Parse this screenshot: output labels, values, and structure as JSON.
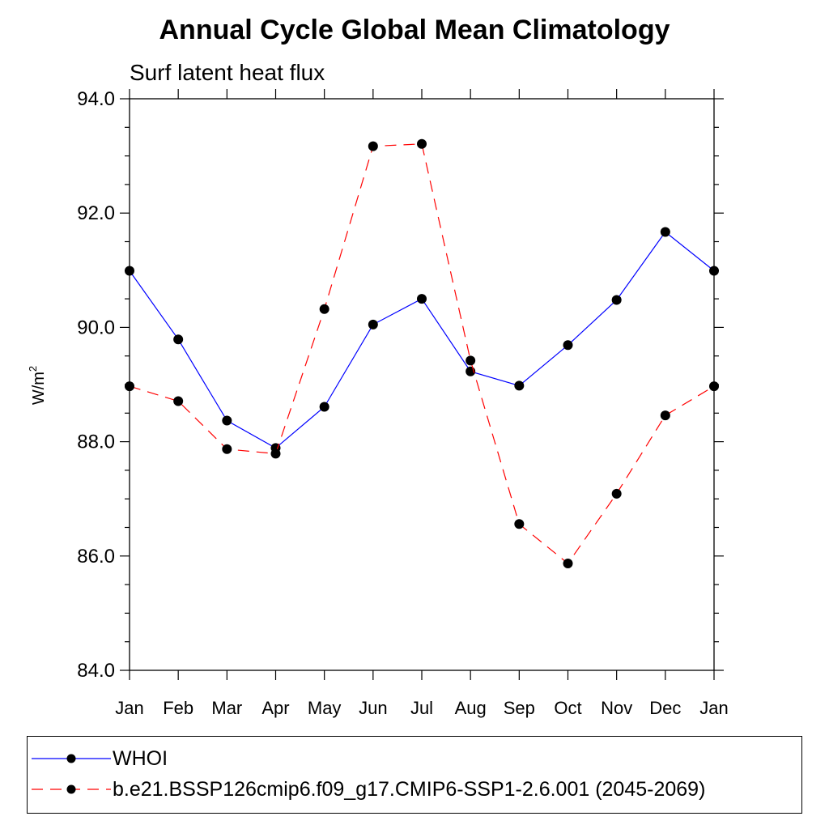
{
  "chart_data": {
    "type": "line",
    "title": "Annual Cycle Global Mean Climatology",
    "subtitle": "Surf latent heat flux",
    "ylabel": "W/m",
    "ylabel_sup": "2",
    "ylim": [
      84.0,
      94.0
    ],
    "y_ticks": [
      "84.0",
      "86.0",
      "88.0",
      "90.0",
      "92.0",
      "94.0"
    ],
    "categories": [
      "Jan",
      "Feb",
      "Mar",
      "Apr",
      "May",
      "Jun",
      "Jul",
      "Aug",
      "Sep",
      "Oct",
      "Nov",
      "Dec",
      "Jan"
    ],
    "series": [
      {
        "name": "WHOI",
        "color": "#0000ff",
        "dash": "solid",
        "values": [
          90.99,
          89.79,
          88.37,
          87.89,
          88.61,
          90.05,
          90.5,
          89.23,
          88.98,
          89.69,
          90.48,
          91.67,
          90.99
        ]
      },
      {
        "name": "b.e21.BSSP126cmip6.f09_g17.CMIP6-SSP1-2.6.001 (2045-2069)",
        "color": "#ff0000",
        "dash": "dashed",
        "values": [
          88.97,
          88.71,
          87.87,
          87.79,
          90.32,
          93.17,
          93.21,
          89.42,
          86.56,
          85.87,
          87.09,
          88.46,
          88.97
        ]
      }
    ]
  }
}
